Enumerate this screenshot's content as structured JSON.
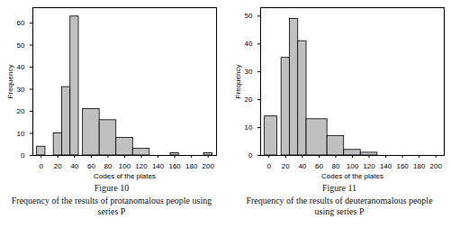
{
  "chart_data": [
    {
      "type": "histogram",
      "title": "Figure 10",
      "caption": "Frequency of the results of protanomalous people using series P",
      "x_label": "Codes of the plates",
      "y_label": "Frequency",
      "bins": [
        -5,
        5,
        15,
        25,
        35,
        45,
        50,
        70,
        90,
        110,
        130,
        155,
        165,
        195,
        205
      ],
      "values": [
        4,
        0,
        10,
        31,
        63,
        0,
        21,
        16,
        8,
        3,
        0,
        1,
        0,
        1
      ],
      "color": "#c0c0c0",
      "xlim": [
        -10,
        210
      ],
      "xticks": [
        0,
        20,
        40,
        60,
        80,
        100,
        120,
        140,
        160,
        180,
        200
      ],
      "ylim": [
        0,
        67
      ],
      "yticks": [
        0,
        10,
        20,
        30,
        40,
        50,
        60
      ],
      "grid": false
    },
    {
      "type": "histogram",
      "title": "Figure 11",
      "caption": "Frequency of the results of deuteranomalous people using series P",
      "x_label": "Codes of the plates",
      "y_label": "Frequency",
      "bins": [
        -5,
        10,
        15,
        25,
        35,
        45,
        70,
        90,
        110,
        130
      ],
      "values": [
        14,
        0,
        35,
        49,
        41,
        13,
        7,
        2,
        1
      ],
      "color": "#c0c0c0",
      "xlim": [
        -10,
        210
      ],
      "xticks": [
        0,
        20,
        40,
        60,
        80,
        100,
        120,
        140,
        160,
        180,
        200
      ],
      "ylim": [
        0,
        53
      ],
      "yticks": [
        0,
        10,
        20,
        30,
        40,
        50
      ],
      "grid": false
    }
  ]
}
